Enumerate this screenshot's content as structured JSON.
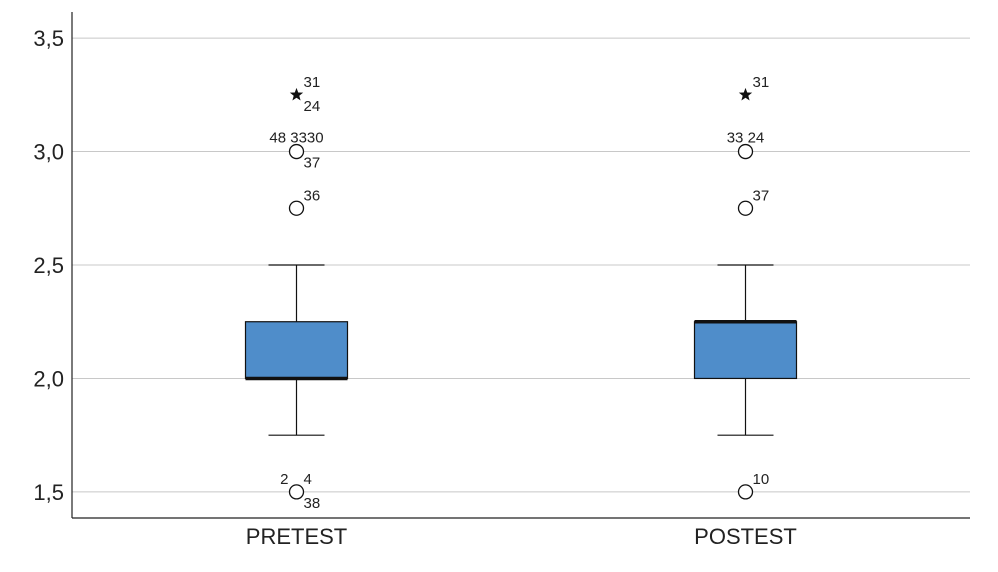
{
  "chart_data": {
    "type": "boxplot",
    "title": "",
    "xlabel": "",
    "ylabel": "",
    "ylim": [
      1.385,
      3.615
    ],
    "y_ticks": [
      1.5,
      2.0,
      2.5,
      3.0,
      3.5
    ],
    "y_tick_labels": [
      "1,5",
      "2,0",
      "2,5",
      "3,0",
      "3,5"
    ],
    "grid": "horizontal",
    "colors": {
      "box_fill": "#4f8dca",
      "line": "#111111",
      "grid": "#c8c8c8",
      "axis": "#222222"
    },
    "categories": [
      "PRETEST",
      "POSTEST"
    ],
    "boxes": [
      {
        "category": "PRETEST",
        "whisker_low": 1.75,
        "q1": 2.0,
        "median": 2.0,
        "q3": 2.25,
        "whisker_high": 2.5,
        "outliers": [
          {
            "y": 3.25,
            "marker": "star",
            "labels": [
              {
                "text": "31",
                "pos": "upper-right"
              },
              {
                "text": "24",
                "pos": "lower-right"
              }
            ]
          },
          {
            "y": 3.0,
            "marker": "circle",
            "labels": [
              {
                "text": "48 3330",
                "pos": "upper-wide"
              },
              {
                "text": "37",
                "pos": "lower-right"
              }
            ]
          },
          {
            "y": 2.75,
            "marker": "circle",
            "labels": [
              {
                "text": "36",
                "pos": "upper-right"
              }
            ]
          },
          {
            "y": 1.5,
            "marker": "circle",
            "labels": [
              {
                "text": "2",
                "pos": "upper-left"
              },
              {
                "text": "4",
                "pos": "upper-right"
              },
              {
                "text": "38",
                "pos": "lower-right"
              }
            ]
          }
        ]
      },
      {
        "category": "POSTEST",
        "whisker_low": 1.75,
        "q1": 2.0,
        "median": 2.25,
        "q3": 2.25,
        "whisker_high": 2.5,
        "outliers": [
          {
            "y": 3.25,
            "marker": "star",
            "labels": [
              {
                "text": "31",
                "pos": "upper-right"
              }
            ]
          },
          {
            "y": 3.0,
            "marker": "circle",
            "labels": [
              {
                "text": "33  24",
                "pos": "upper-wide"
              }
            ]
          },
          {
            "y": 2.75,
            "marker": "circle",
            "labels": [
              {
                "text": "37",
                "pos": "upper-right"
              }
            ]
          },
          {
            "y": 1.5,
            "marker": "circle",
            "labels": [
              {
                "text": "10",
                "pos": "upper-right"
              }
            ]
          }
        ]
      }
    ]
  }
}
